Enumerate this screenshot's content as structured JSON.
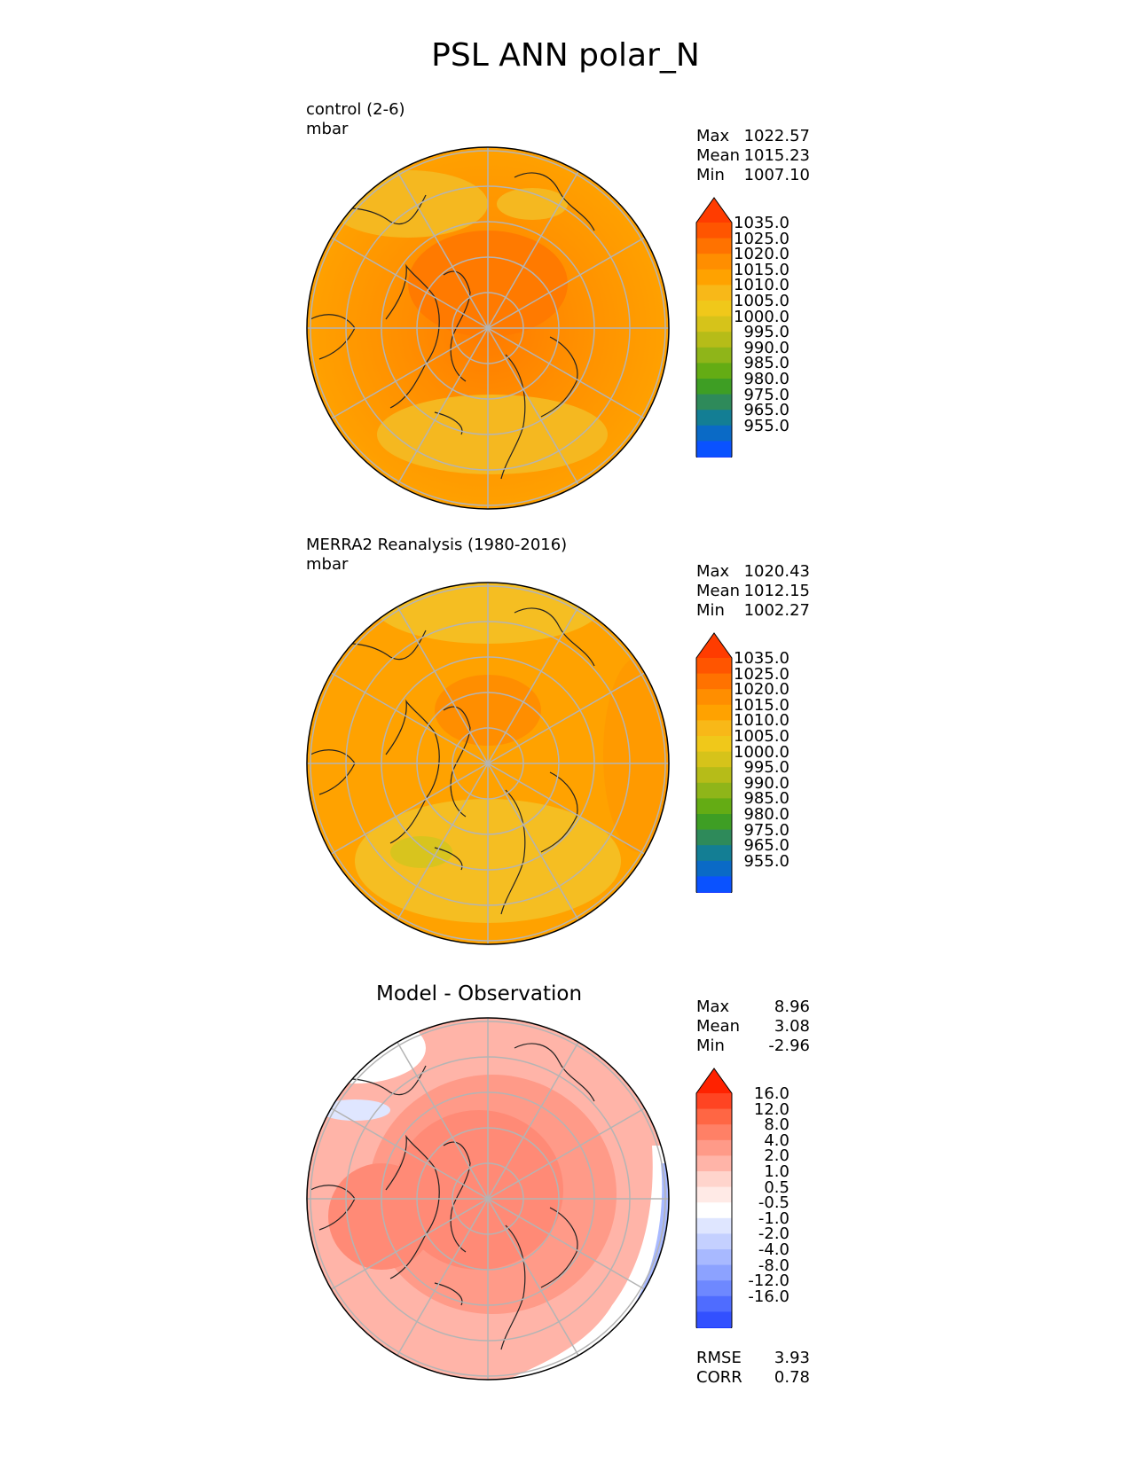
{
  "title": "PSL ANN polar_N",
  "panels": [
    {
      "id": "control",
      "label_line1": "control (2-6)",
      "label_line2": "mbar",
      "stats": [
        {
          "label": "Max",
          "value": "1022.57"
        },
        {
          "label": "Mean",
          "value": "1015.23"
        },
        {
          "label": "Min",
          "value": "1007.10"
        }
      ],
      "colorbar": {
        "labels": [
          "1035.0",
          "1025.0",
          "1020.0",
          "1015.0",
          "1010.0",
          "1005.0",
          "1000.0",
          "995.0",
          "990.0",
          "985.0",
          "980.0",
          "975.0",
          "965.0",
          "955.0"
        ],
        "colors": [
          "#ff3c00",
          "#ff5500",
          "#ff7200",
          "#ff8e00",
          "#ffa200",
          "#f8b818",
          "#f0c81a",
          "#d6c31a",
          "#b6bc18",
          "#8fb519",
          "#64ac14",
          "#3e9e24",
          "#2e8a5a",
          "#137e94",
          "#0a6ac6",
          "#0a52ff",
          "#1a3cff"
        ]
      }
    },
    {
      "id": "merra2",
      "label_line1": "MERRA2 Reanalysis (1980-2016)",
      "label_line2": "mbar",
      "stats": [
        {
          "label": "Max",
          "value": "1020.43"
        },
        {
          "label": "Mean",
          "value": "1012.15"
        },
        {
          "label": "Min",
          "value": "1002.27"
        }
      ],
      "colorbar": {
        "labels": [
          "1035.0",
          "1025.0",
          "1020.0",
          "1015.0",
          "1010.0",
          "1005.0",
          "1000.0",
          "995.0",
          "990.0",
          "985.0",
          "980.0",
          "975.0",
          "965.0",
          "955.0"
        ],
        "colors": [
          "#ff3c00",
          "#ff5500",
          "#ff7200",
          "#ff8e00",
          "#ffa200",
          "#f8b818",
          "#f0c81a",
          "#d6c31a",
          "#b6bc18",
          "#8fb519",
          "#64ac14",
          "#3e9e24",
          "#2e8a5a",
          "#137e94",
          "#0a6ac6",
          "#0a52ff",
          "#1a3cff"
        ]
      }
    },
    {
      "id": "diff",
      "title": "Model - Observation",
      "stats": [
        {
          "label": "Max",
          "value": "8.96"
        },
        {
          "label": "Mean",
          "value": "3.08"
        },
        {
          "label": "Min",
          "value": "-2.96"
        }
      ],
      "metrics": [
        {
          "label": "RMSE",
          "value": "3.93"
        },
        {
          "label": "CORR",
          "value": "0.78"
        }
      ],
      "colorbar": {
        "labels": [
          "16.0",
          "12.0",
          "8.0",
          "4.0",
          "2.0",
          "1.0",
          "0.5",
          "-0.5",
          "-1.0",
          "-2.0",
          "-4.0",
          "-8.0",
          "-12.0",
          "-16.0"
        ],
        "colors": [
          "#ff2200",
          "#ff4422",
          "#ff6644",
          "#ff8066",
          "#ff9a88",
          "#ffb4a8",
          "#ffd4cc",
          "#ffeae6",
          "#ffffff",
          "#dfe6ff",
          "#c4d0ff",
          "#a8b9ff",
          "#8ca2ff",
          "#6e88ff",
          "#4f6cff",
          "#3250ff",
          "#1a38ff"
        ]
      }
    }
  ]
}
